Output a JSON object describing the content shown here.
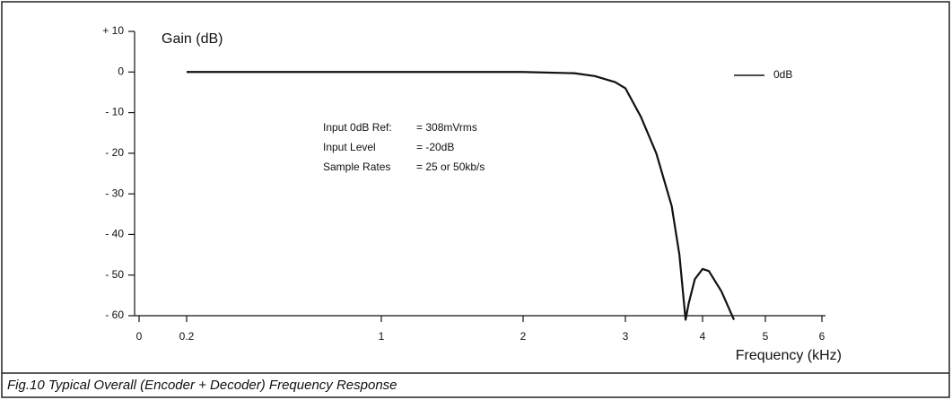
{
  "chart_data": {
    "type": "line",
    "title": "Fig.10 Typical Overall (Encoder + Decoder) Frequency Response",
    "y_label": "Gain (dB)",
    "x_label": "Frequency (kHz)",
    "annotations": [
      {
        "label": "Input 0dB Ref:",
        "value": "= 308mVrms"
      },
      {
        "label": "Input Level",
        "value": "= -20dB"
      },
      {
        "label": "Sample Rates",
        "value": "= 25 or 50kb/s"
      }
    ],
    "x": [
      0.2,
      1,
      2,
      2.5,
      2.7,
      2.9,
      3,
      3.2,
      3.4,
      3.6,
      3.7,
      3.75,
      3.78,
      3.82,
      3.9,
      4,
      4.1,
      4.3,
      4.5
    ],
    "series": [
      {
        "name": "0dB",
        "color": "#111111",
        "values": [
          0,
          0,
          0,
          -0.3,
          -1,
          -2.5,
          -4,
          -11,
          -20,
          -33,
          -45,
          -55,
          -61,
          -57,
          -51,
          -48.5,
          -49,
          -54,
          -61
        ]
      }
    ],
    "xlim": [
      0,
      6
    ],
    "xticks": [
      0,
      0.2,
      1,
      2,
      3,
      4,
      5,
      6
    ],
    "ylim": [
      -60,
      10
    ],
    "yticks": [
      {
        "value": 10,
        "label": "+ 10"
      },
      0,
      {
        "value": -10,
        "label": "- 10"
      },
      {
        "value": -20,
        "label": "- 20"
      },
      {
        "value": -30,
        "label": "- 30"
      },
      {
        "value": -40,
        "label": "- 40"
      },
      {
        "value": -50,
        "label": "- 50"
      },
      {
        "value": -60,
        "label": "- 60"
      }
    ],
    "legend": "upper right",
    "grid": false
  }
}
